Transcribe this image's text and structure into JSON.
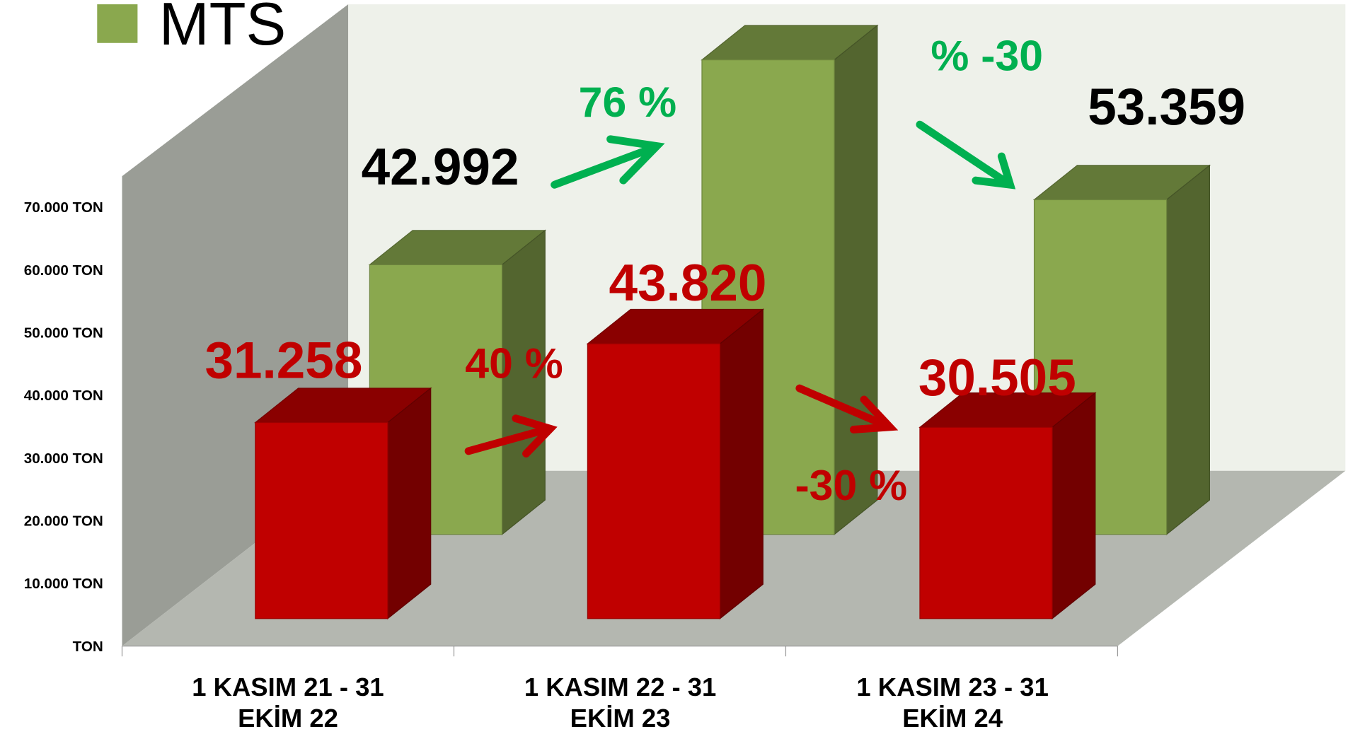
{
  "chart_data": {
    "type": "bar3d",
    "categories": [
      "1 KASIM 21 - 31 EKİM 22",
      "1 KASIM 22 - 31 EKİM 23",
      "1 KASIM 23 - 31 EKİM 24"
    ],
    "series": [
      {
        "name": "MTS",
        "color": "#8aa84e",
        "values": [
          42992,
          75666,
          53359
        ],
        "value_labels": [
          "42.992",
          null,
          "53.359"
        ]
      },
      {
        "color": "#c00000",
        "values": [
          31258,
          43820,
          30505
        ],
        "value_labels": [
          "31.258",
          "43.820",
          "30.505"
        ]
      }
    ],
    "annotations": [
      "40 %",
      "-30 %",
      "76 %",
      "% -30"
    ],
    "ylim": [
      0,
      70000
    ],
    "yticks": [
      {
        "value": 0,
        "label": "TON"
      },
      {
        "value": 10000,
        "label": "10.000 TON"
      },
      {
        "value": 20000,
        "label": "20.000 TON"
      },
      {
        "value": 30000,
        "label": "30.000 TON"
      },
      {
        "value": 40000,
        "label": "40.000 TON"
      },
      {
        "value": 50000,
        "label": "50.000 TON"
      },
      {
        "value": 60000,
        "label": "60.000 TON"
      },
      {
        "value": 70000,
        "label": "70.000 TON"
      }
    ],
    "legend": "top-left"
  }
}
